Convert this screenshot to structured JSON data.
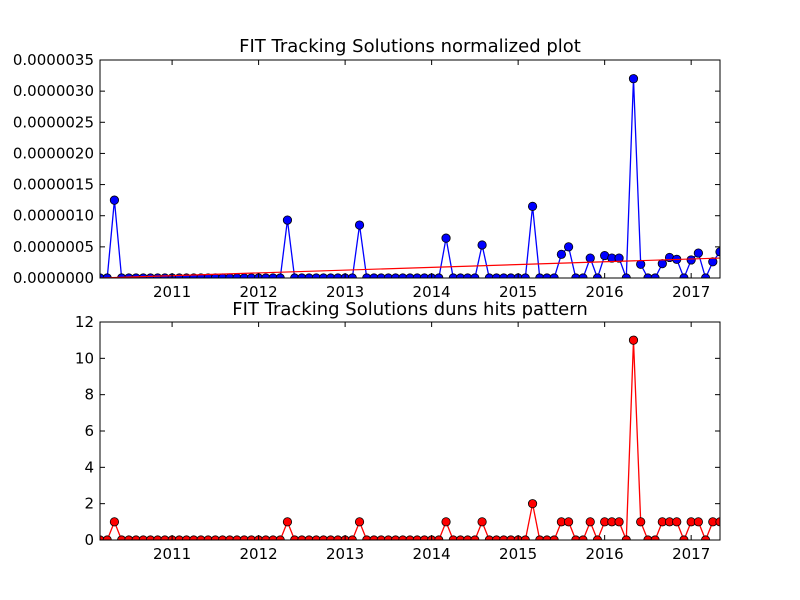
{
  "chart_data": [
    {
      "type": "line",
      "title": "FIT Tracking Solutions normalized plot",
      "xlabel": "",
      "ylabel": "",
      "xlim": [
        "2010-03",
        "2017-05"
      ],
      "ylim": [
        0,
        3.5e-06
      ],
      "grid": false,
      "x_ticks": [
        "2011",
        "2012",
        "2013",
        "2014",
        "2015",
        "2016",
        "2017"
      ],
      "y_ticks": [
        "0.0000000",
        "0.0000005",
        "0.0000010",
        "0.0000015",
        "0.0000020",
        "0.0000025",
        "0.0000030",
        "0.0000035"
      ],
      "series": [
        {
          "color": "#0000ff",
          "marker": "circle",
          "x": [
            "2010-03",
            "2010-04",
            "2010-05",
            "2010-06",
            "2010-07",
            "2010-08",
            "2010-09",
            "2010-10",
            "2010-11",
            "2010-12",
            "2011-01",
            "2011-02",
            "2011-03",
            "2011-04",
            "2011-05",
            "2011-06",
            "2011-07",
            "2011-08",
            "2011-09",
            "2011-10",
            "2011-11",
            "2011-12",
            "2012-01",
            "2012-02",
            "2012-03",
            "2012-04",
            "2012-05",
            "2012-06",
            "2012-07",
            "2012-08",
            "2012-09",
            "2012-10",
            "2012-11",
            "2012-12",
            "2013-01",
            "2013-02",
            "2013-03",
            "2013-04",
            "2013-05",
            "2013-06",
            "2013-07",
            "2013-08",
            "2013-09",
            "2013-10",
            "2013-11",
            "2013-12",
            "2014-01",
            "2014-02",
            "2014-03",
            "2014-04",
            "2014-05",
            "2014-06",
            "2014-07",
            "2014-08",
            "2014-09",
            "2014-10",
            "2014-11",
            "2014-12",
            "2015-01",
            "2015-02",
            "2015-03",
            "2015-04",
            "2015-05",
            "2015-06",
            "2015-07",
            "2015-08",
            "2015-09",
            "2015-10",
            "2015-11",
            "2015-12",
            "2016-01",
            "2016-02",
            "2016-03",
            "2016-04",
            "2016-05",
            "2016-06",
            "2016-07",
            "2016-08",
            "2016-09",
            "2016-10",
            "2016-11",
            "2016-12",
            "2017-01",
            "2017-02",
            "2017-03",
            "2017-04",
            "2017-05"
          ],
          "values": [
            0,
            0,
            1.25e-06,
            0,
            0,
            0,
            0,
            0,
            0,
            0,
            0,
            0,
            0,
            0,
            0,
            0,
            0,
            0,
            0,
            0,
            0,
            0,
            0,
            0,
            0,
            0,
            9.3e-07,
            0,
            0,
            0,
            0,
            0,
            0,
            0,
            0,
            0,
            8.5e-07,
            0,
            0,
            0,
            0,
            0,
            0,
            0,
            0,
            0,
            0,
            0,
            6.4e-07,
            0,
            0,
            0,
            0,
            5.3e-07,
            0,
            0,
            0,
            0,
            0,
            0,
            1.15e-06,
            0,
            0,
            0,
            3.8e-07,
            5e-07,
            0,
            0,
            3.2e-07,
            0,
            3.6e-07,
            3.2e-07,
            3.2e-07,
            0,
            3.2e-06,
            2.2e-07,
            0,
            0,
            2.3e-07,
            3.3e-07,
            3e-07,
            0,
            2.9e-07,
            4e-07,
            0,
            2.6e-07,
            4.2e-07
          ]
        }
      ],
      "trend_line": {
        "color": "#ff0000",
        "x": [
          "2010-03",
          "2017-05"
        ],
        "values": [
          0,
          3.2e-07
        ]
      }
    },
    {
      "type": "line",
      "title": "FIT Tracking Solutions duns hits pattern",
      "xlabel": "",
      "ylabel": "",
      "xlim": [
        "2010-03",
        "2017-05"
      ],
      "ylim": [
        0,
        12
      ],
      "grid": false,
      "x_ticks": [
        "2011",
        "2012",
        "2013",
        "2014",
        "2015",
        "2016",
        "2017"
      ],
      "y_ticks": [
        "0",
        "2",
        "4",
        "6",
        "8",
        "10",
        "12"
      ],
      "series": [
        {
          "color": "#ff0000",
          "marker": "circle",
          "x": [
            "2010-03",
            "2010-04",
            "2010-05",
            "2010-06",
            "2010-07",
            "2010-08",
            "2010-09",
            "2010-10",
            "2010-11",
            "2010-12",
            "2011-01",
            "2011-02",
            "2011-03",
            "2011-04",
            "2011-05",
            "2011-06",
            "2011-07",
            "2011-08",
            "2011-09",
            "2011-10",
            "2011-11",
            "2011-12",
            "2012-01",
            "2012-02",
            "2012-03",
            "2012-04",
            "2012-05",
            "2012-06",
            "2012-07",
            "2012-08",
            "2012-09",
            "2012-10",
            "2012-11",
            "2012-12",
            "2013-01",
            "2013-02",
            "2013-03",
            "2013-04",
            "2013-05",
            "2013-06",
            "2013-07",
            "2013-08",
            "2013-09",
            "2013-10",
            "2013-11",
            "2013-12",
            "2014-01",
            "2014-02",
            "2014-03",
            "2014-04",
            "2014-05",
            "2014-06",
            "2014-07",
            "2014-08",
            "2014-09",
            "2014-10",
            "2014-11",
            "2014-12",
            "2015-01",
            "2015-02",
            "2015-03",
            "2015-04",
            "2015-05",
            "2015-06",
            "2015-07",
            "2015-08",
            "2015-09",
            "2015-10",
            "2015-11",
            "2015-12",
            "2016-01",
            "2016-02",
            "2016-03",
            "2016-04",
            "2016-05",
            "2016-06",
            "2016-07",
            "2016-08",
            "2016-09",
            "2016-10",
            "2016-11",
            "2016-12",
            "2017-01",
            "2017-02",
            "2017-03",
            "2017-04",
            "2017-05"
          ],
          "values": [
            0,
            0,
            1,
            0,
            0,
            0,
            0,
            0,
            0,
            0,
            0,
            0,
            0,
            0,
            0,
            0,
            0,
            0,
            0,
            0,
            0,
            0,
            0,
            0,
            0,
            0,
            1,
            0,
            0,
            0,
            0,
            0,
            0,
            0,
            0,
            0,
            1,
            0,
            0,
            0,
            0,
            0,
            0,
            0,
            0,
            0,
            0,
            0,
            1,
            0,
            0,
            0,
            0,
            1,
            0,
            0,
            0,
            0,
            0,
            0,
            2,
            0,
            0,
            0,
            1,
            1,
            0,
            0,
            1,
            0,
            1,
            1,
            1,
            0,
            11,
            1,
            0,
            0,
            1,
            1,
            1,
            0,
            1,
            1,
            0,
            1,
            1
          ]
        }
      ]
    }
  ]
}
